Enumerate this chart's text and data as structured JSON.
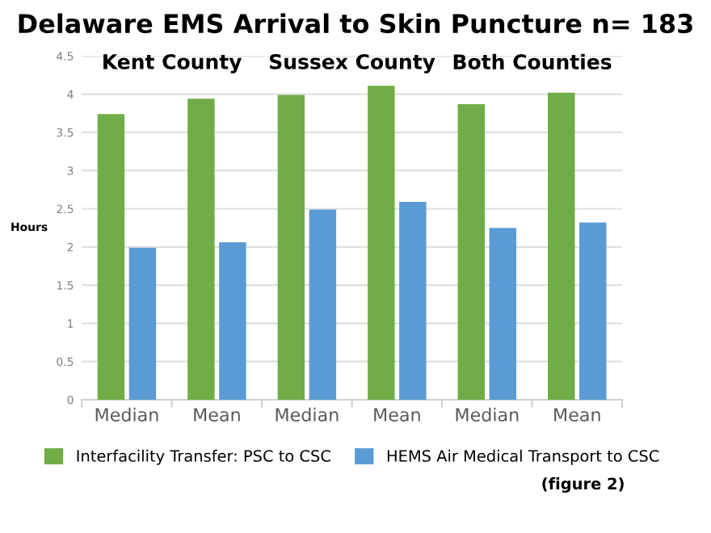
{
  "chart_data": {
    "type": "bar",
    "title": "Delaware EMS Arrival to Skin Puncture n= 183",
    "ylabel": "Hours",
    "categories": [
      "Median",
      "Mean",
      "Median",
      "Mean",
      "Median",
      "Mean"
    ],
    "series": [
      {
        "name": "Interfacility Transfer: PSC to CSC",
        "color": "#70ad47",
        "values": [
          3.74,
          3.94,
          3.99,
          4.11,
          3.87,
          4.02
        ]
      },
      {
        "name": "HEMS Air Medical Transport to CSC",
        "color": "#5b9bd5",
        "values": [
          1.99,
          2.06,
          2.49,
          2.59,
          2.25,
          2.32
        ]
      }
    ],
    "ylim": [
      0,
      4.5
    ],
    "yticks": [
      0,
      0.5,
      1,
      1.5,
      2,
      2.5,
      3,
      3.5,
      4,
      4.5
    ],
    "grid": "y",
    "legend": "bottom",
    "annotations": [
      "Kent County",
      "Sussex County",
      "Both Counties",
      "(figure 2)"
    ]
  }
}
